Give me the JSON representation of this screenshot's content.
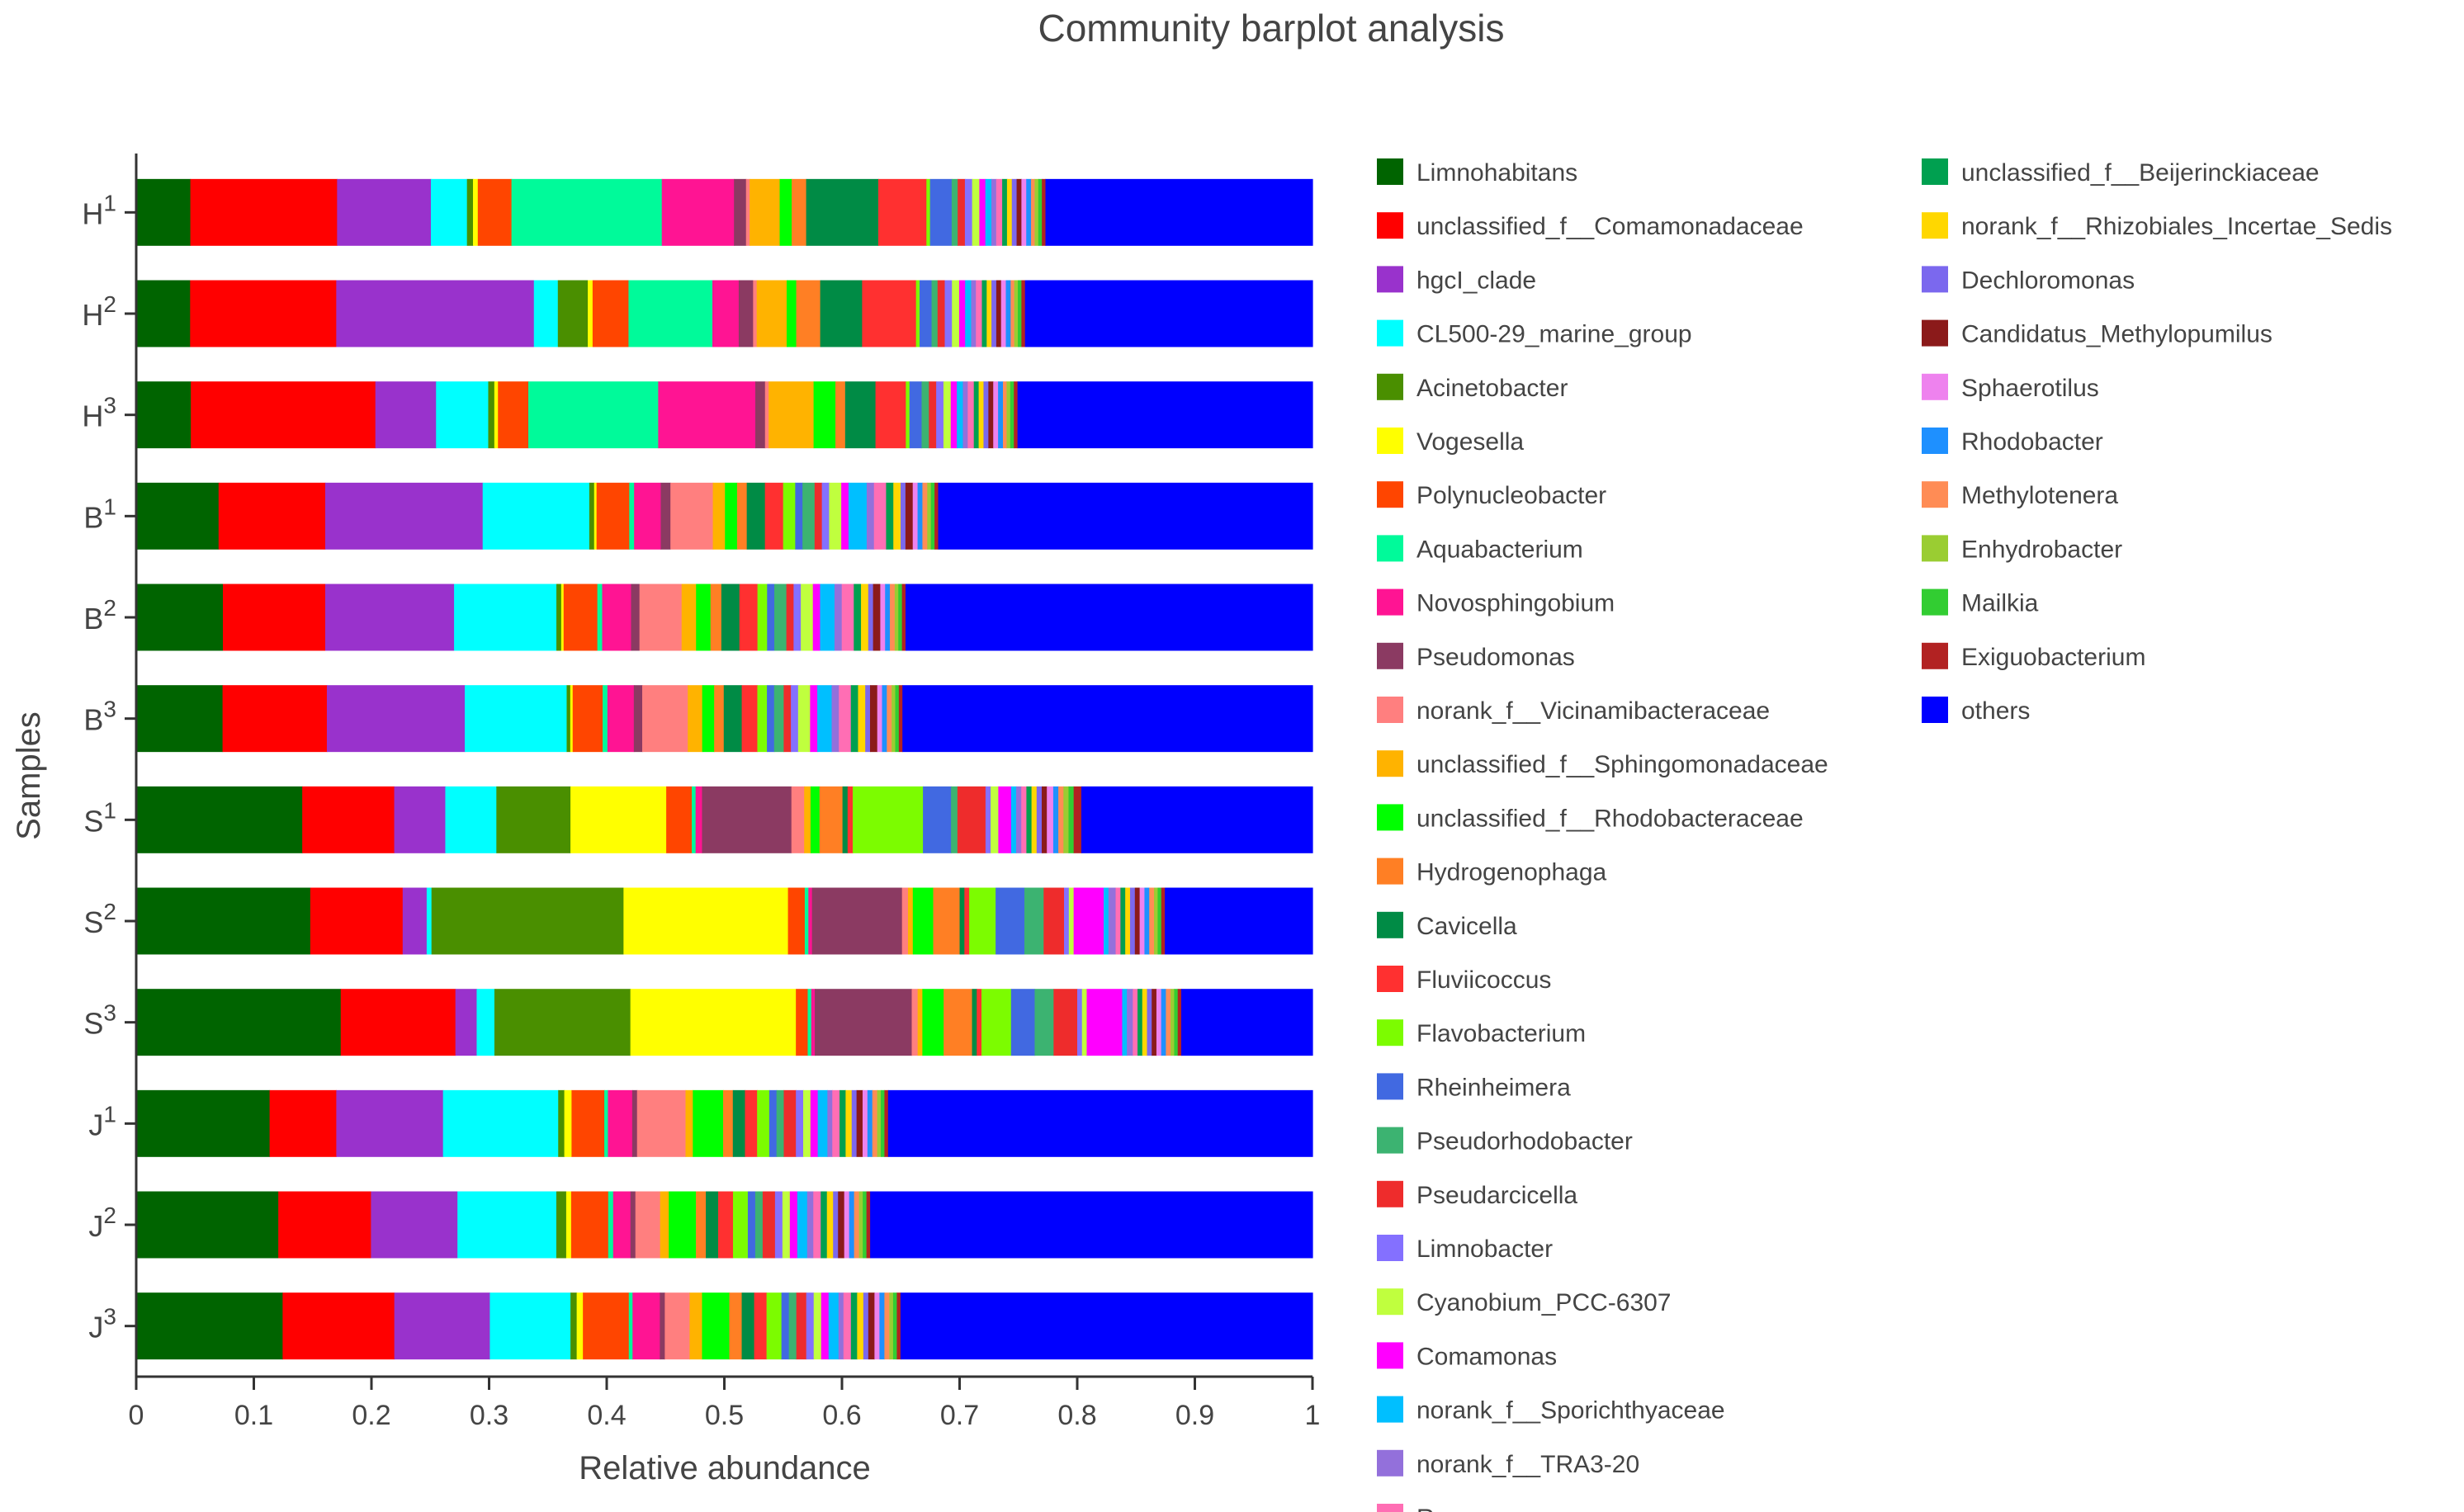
{
  "chart_data": {
    "type": "bar",
    "orientation": "horizontal",
    "stacked": true,
    "title": "Community barplot analysis",
    "xlabel": "Relative abundance",
    "ylabel": "Samples",
    "xlim": [
      0,
      1
    ],
    "xticks": [
      0,
      0.1,
      0.2,
      0.3,
      0.4,
      0.5,
      0.6,
      0.7,
      0.8,
      0.9,
      1
    ],
    "xtick_labels": [
      "0",
      "0.1",
      "0.2",
      "0.3",
      "0.4",
      "0.5",
      "0.6",
      "0.7",
      "0.8",
      "0.9",
      "1"
    ],
    "samples": [
      {
        "letter": "H",
        "sup": "1"
      },
      {
        "letter": "H",
        "sup": "2"
      },
      {
        "letter": "H",
        "sup": "3"
      },
      {
        "letter": "B",
        "sup": "1"
      },
      {
        "letter": "B",
        "sup": "2"
      },
      {
        "letter": "B",
        "sup": "3"
      },
      {
        "letter": "S",
        "sup": "1"
      },
      {
        "letter": "S",
        "sup": "2"
      },
      {
        "letter": "S",
        "sup": "3"
      },
      {
        "letter": "J",
        "sup": "1"
      },
      {
        "letter": "J",
        "sup": "2"
      },
      {
        "letter": "J",
        "sup": "3"
      }
    ],
    "legend_position": "right",
    "series": [
      {
        "name": "Limnohabitans",
        "color": "#006400",
        "values": [
          0.045,
          0.045,
          0.045,
          0.068,
          0.072,
          0.072,
          0.13,
          0.145,
          0.173,
          0.11,
          0.115,
          0.118
        ]
      },
      {
        "name": "unclassified_f__Comamonadaceae",
        "color": "#ff0000",
        "values": [
          0.122,
          0.122,
          0.152,
          0.088,
          0.085,
          0.087,
          0.072,
          0.077,
          0.097,
          0.055,
          0.075,
          0.09
        ]
      },
      {
        "name": "hgcI_clade",
        "color": "#9932cc",
        "values": [
          0.078,
          0.165,
          0.05,
          0.13,
          0.107,
          0.115,
          0.04,
          0.02,
          0.018,
          0.088,
          0.07,
          0.077
        ]
      },
      {
        "name": "CL500-29_marine_group",
        "color": "#00ffff",
        "values": [
          0.03,
          0.02,
          0.043,
          0.088,
          0.085,
          0.085,
          0.04,
          0.004,
          0.015,
          0.095,
          0.08,
          0.065
        ]
      },
      {
        "name": "Acinetobacter",
        "color": "#4a8f00",
        "values": [
          0.005,
          0.025,
          0.005,
          0.004,
          0.004,
          0.003,
          0.058,
          0.16,
          0.115,
          0.005,
          0.008,
          0.005
        ]
      },
      {
        "name": "Vogesella",
        "color": "#ffff00",
        "values": [
          0.004,
          0.004,
          0.003,
          0.002,
          0.002,
          0.002,
          0.075,
          0.137,
          0.14,
          0.006,
          0.004,
          0.005
        ]
      },
      {
        "name": "Polynucleobacter",
        "color": "#ff4500",
        "values": [
          0.028,
          0.03,
          0.025,
          0.027,
          0.028,
          0.025,
          0.02,
          0.014,
          0.01,
          0.027,
          0.03,
          0.037
        ]
      },
      {
        "name": "Aquabacterium",
        "color": "#00fa9a",
        "values": [
          0.125,
          0.07,
          0.107,
          0.004,
          0.004,
          0.004,
          0.003,
          0.003,
          0.003,
          0.003,
          0.004,
          0.003
        ]
      },
      {
        "name": "Novosphingobium",
        "color": "#ff1493",
        "values": [
          0.06,
          0.022,
          0.08,
          0.022,
          0.024,
          0.022,
          0.005,
          0.003,
          0.003,
          0.02,
          0.014,
          0.022
        ]
      },
      {
        "name": "Pseudomonas",
        "color": "#8b3a62",
        "values": [
          0.01,
          0.012,
          0.008,
          0.008,
          0.007,
          0.007,
          0.07,
          0.075,
          0.082,
          0.004,
          0.004,
          0.004
        ]
      },
      {
        "name": "norank_f__Vicinamibacteraceae",
        "color": "#ff7f7f",
        "values": [
          0.003,
          0.003,
          0.003,
          0.035,
          0.035,
          0.038,
          0.01,
          0.005,
          0.005,
          0.04,
          0.02,
          0.02
        ]
      },
      {
        "name": "unclassified_f__Sphingomonadaceae",
        "color": "#ffb300",
        "values": [
          0.025,
          0.025,
          0.037,
          0.01,
          0.012,
          0.012,
          0.005,
          0.004,
          0.004,
          0.006,
          0.007,
          0.01
        ]
      },
      {
        "name": "unclassified_f__Rhodobacteraceae",
        "color": "#00ff00",
        "values": [
          0.01,
          0.008,
          0.018,
          0.01,
          0.012,
          0.01,
          0.007,
          0.017,
          0.018,
          0.025,
          0.022,
          0.022
        ]
      },
      {
        "name": "Hydrogenophaga",
        "color": "#ff7f24",
        "values": [
          0.012,
          0.02,
          0.008,
          0.008,
          0.009,
          0.008,
          0.018,
          0.022,
          0.024,
          0.008,
          0.008,
          0.01
        ]
      },
      {
        "name": "Cavicella",
        "color": "#008b45",
        "values": [
          0.06,
          0.035,
          0.025,
          0.015,
          0.015,
          0.015,
          0.004,
          0.004,
          0.004,
          0.01,
          0.01,
          0.01
        ]
      },
      {
        "name": "Fluviicoccus",
        "color": "#ff3030",
        "values": [
          0.04,
          0.045,
          0.025,
          0.015,
          0.015,
          0.013,
          0.004,
          0.004,
          0.004,
          0.01,
          0.012,
          0.01
        ]
      },
      {
        "name": "Flavobacterium",
        "color": "#7cfc00",
        "values": [
          0.003,
          0.003,
          0.003,
          0.01,
          0.008,
          0.008,
          0.055,
          0.022,
          0.025,
          0.01,
          0.012,
          0.012
        ]
      },
      {
        "name": "Rheinheimera",
        "color": "#4169e1",
        "values": [
          0.018,
          0.01,
          0.01,
          0.006,
          0.006,
          0.006,
          0.022,
          0.024,
          0.02,
          0.006,
          0.006,
          0.006
        ]
      },
      {
        "name": "Pseudorhodobacter",
        "color": "#3cb371",
        "values": [
          0.005,
          0.005,
          0.006,
          0.01,
          0.01,
          0.008,
          0.005,
          0.016,
          0.016,
          0.006,
          0.006,
          0.006
        ]
      },
      {
        "name": "Pseudarcicella",
        "color": "#ee2c2c",
        "values": [
          0.006,
          0.006,
          0.006,
          0.006,
          0.006,
          0.006,
          0.022,
          0.017,
          0.02,
          0.01,
          0.01,
          0.008
        ]
      },
      {
        "name": "Limnobacter",
        "color": "#8470ff",
        "values": [
          0.006,
          0.006,
          0.006,
          0.006,
          0.006,
          0.006,
          0.004,
          0.004,
          0.004,
          0.006,
          0.006,
          0.006
        ]
      },
      {
        "name": "Cyanobium_PCC-6307",
        "color": "#c0ff3e",
        "values": [
          0.006,
          0.006,
          0.006,
          0.01,
          0.01,
          0.01,
          0.006,
          0.004,
          0.004,
          0.006,
          0.006,
          0.006
        ]
      },
      {
        "name": "Comamonas",
        "color": "#ff00ff",
        "values": [
          0.005,
          0.005,
          0.005,
          0.006,
          0.006,
          0.006,
          0.01,
          0.025,
          0.03,
          0.006,
          0.006,
          0.006
        ]
      },
      {
        "name": "norank_f__Sporichthyaceae",
        "color": "#00bfff",
        "values": [
          0.005,
          0.005,
          0.005,
          0.015,
          0.012,
          0.012,
          0.004,
          0.004,
          0.004,
          0.008,
          0.008,
          0.008
        ]
      },
      {
        "name": "norank_f__TRA3-20",
        "color": "#9370db",
        "values": [
          0.004,
          0.004,
          0.004,
          0.006,
          0.006,
          0.006,
          0.004,
          0.006,
          0.005,
          0.004,
          0.005,
          0.004
        ]
      },
      {
        "name": "Roseomonas",
        "color": "#ff6eb4",
        "values": [
          0.005,
          0.005,
          0.005,
          0.01,
          0.01,
          0.01,
          0.004,
          0.004,
          0.004,
          0.006,
          0.006,
          0.006
        ]
      },
      {
        "name": "unclassified_f__Beijerinckiaceae",
        "color": "#00a050",
        "values": [
          0.004,
          0.004,
          0.004,
          0.006,
          0.006,
          0.006,
          0.004,
          0.004,
          0.004,
          0.005,
          0.005,
          0.005
        ]
      },
      {
        "name": "norank_f__Rhizobiales_Incertae_Sedis",
        "color": "#ffd700",
        "values": [
          0.004,
          0.004,
          0.004,
          0.006,
          0.006,
          0.006,
          0.004,
          0.004,
          0.004,
          0.005,
          0.005,
          0.005
        ]
      },
      {
        "name": "Dechloromonas",
        "color": "#7b68ee",
        "values": [
          0.004,
          0.004,
          0.004,
          0.004,
          0.004,
          0.004,
          0.004,
          0.004,
          0.004,
          0.004,
          0.004,
          0.004
        ]
      },
      {
        "name": "Candidatus_Methylopumilus",
        "color": "#8b1a1a",
        "values": [
          0.004,
          0.004,
          0.004,
          0.006,
          0.006,
          0.006,
          0.004,
          0.004,
          0.004,
          0.005,
          0.005,
          0.005
        ]
      },
      {
        "name": "Sphaerotilus",
        "color": "#ee82ee",
        "values": [
          0.004,
          0.004,
          0.004,
          0.004,
          0.004,
          0.004,
          0.005,
          0.004,
          0.004,
          0.004,
          0.004,
          0.004
        ]
      },
      {
        "name": "Rhodobacter",
        "color": "#1e90ff",
        "values": [
          0.004,
          0.004,
          0.004,
          0.004,
          0.004,
          0.004,
          0.004,
          0.004,
          0.004,
          0.004,
          0.004,
          0.004
        ]
      },
      {
        "name": "Methylotenera",
        "color": "#ff8c55",
        "values": [
          0.003,
          0.003,
          0.003,
          0.004,
          0.004,
          0.004,
          0.004,
          0.004,
          0.004,
          0.004,
          0.004,
          0.004
        ]
      },
      {
        "name": "Enhydrobacter",
        "color": "#9acd32",
        "values": [
          0.003,
          0.003,
          0.003,
          0.003,
          0.003,
          0.003,
          0.004,
          0.003,
          0.003,
          0.003,
          0.003,
          0.003
        ]
      },
      {
        "name": "Mailkia",
        "color": "#32cd32",
        "values": [
          0.003,
          0.003,
          0.003,
          0.003,
          0.003,
          0.003,
          0.004,
          0.003,
          0.003,
          0.003,
          0.003,
          0.003
        ]
      },
      {
        "name": "Exiguobacterium",
        "color": "#b22222",
        "values": [
          0.003,
          0.003,
          0.003,
          0.003,
          0.003,
          0.003,
          0.006,
          0.003,
          0.003,
          0.003,
          0.003,
          0.003
        ]
      },
      {
        "name": "others",
        "color": "#0000ff",
        "values": [
          0.222,
          0.24,
          0.243,
          0.309,
          0.338,
          0.342,
          0.181,
          0.123,
          0.111,
          0.35,
          0.358,
          0.332
        ]
      }
    ]
  }
}
